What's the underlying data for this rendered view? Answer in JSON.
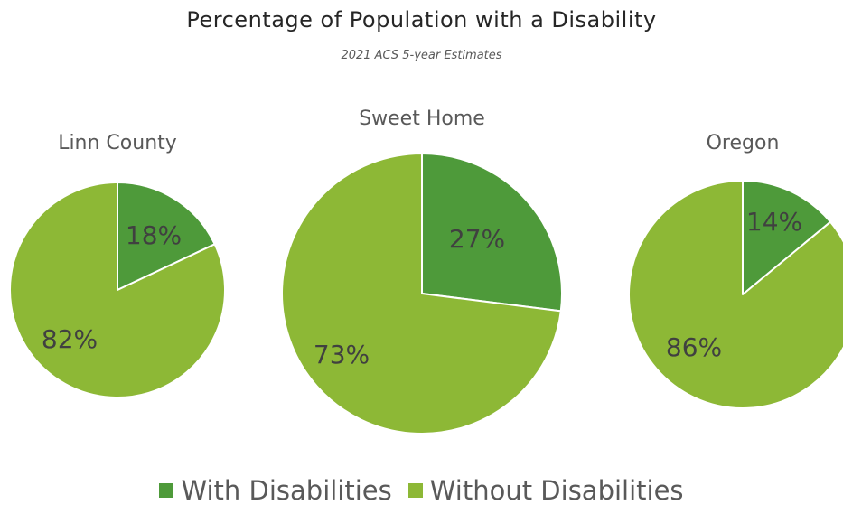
{
  "chart_data": {
    "type": "pie",
    "title": "Percentage of Population with a Disability",
    "subtitle": "2021 ACS 5-year Estimates",
    "legend_position": "bottom",
    "categories": [
      "With Disabilities",
      "Without Disabilities"
    ],
    "colors": {
      "with": "#4e9a3a",
      "without": "#8db836"
    },
    "pies": [
      {
        "name": "Linn County",
        "values": [
          18,
          82
        ],
        "labels": [
          "18%",
          "82%"
        ]
      },
      {
        "name": "Sweet Home",
        "values": [
          27,
          73
        ],
        "labels": [
          "27%",
          "73%"
        ]
      },
      {
        "name": "Oregon",
        "values": [
          14,
          86
        ],
        "labels": [
          "14%",
          "86%"
        ]
      }
    ]
  }
}
